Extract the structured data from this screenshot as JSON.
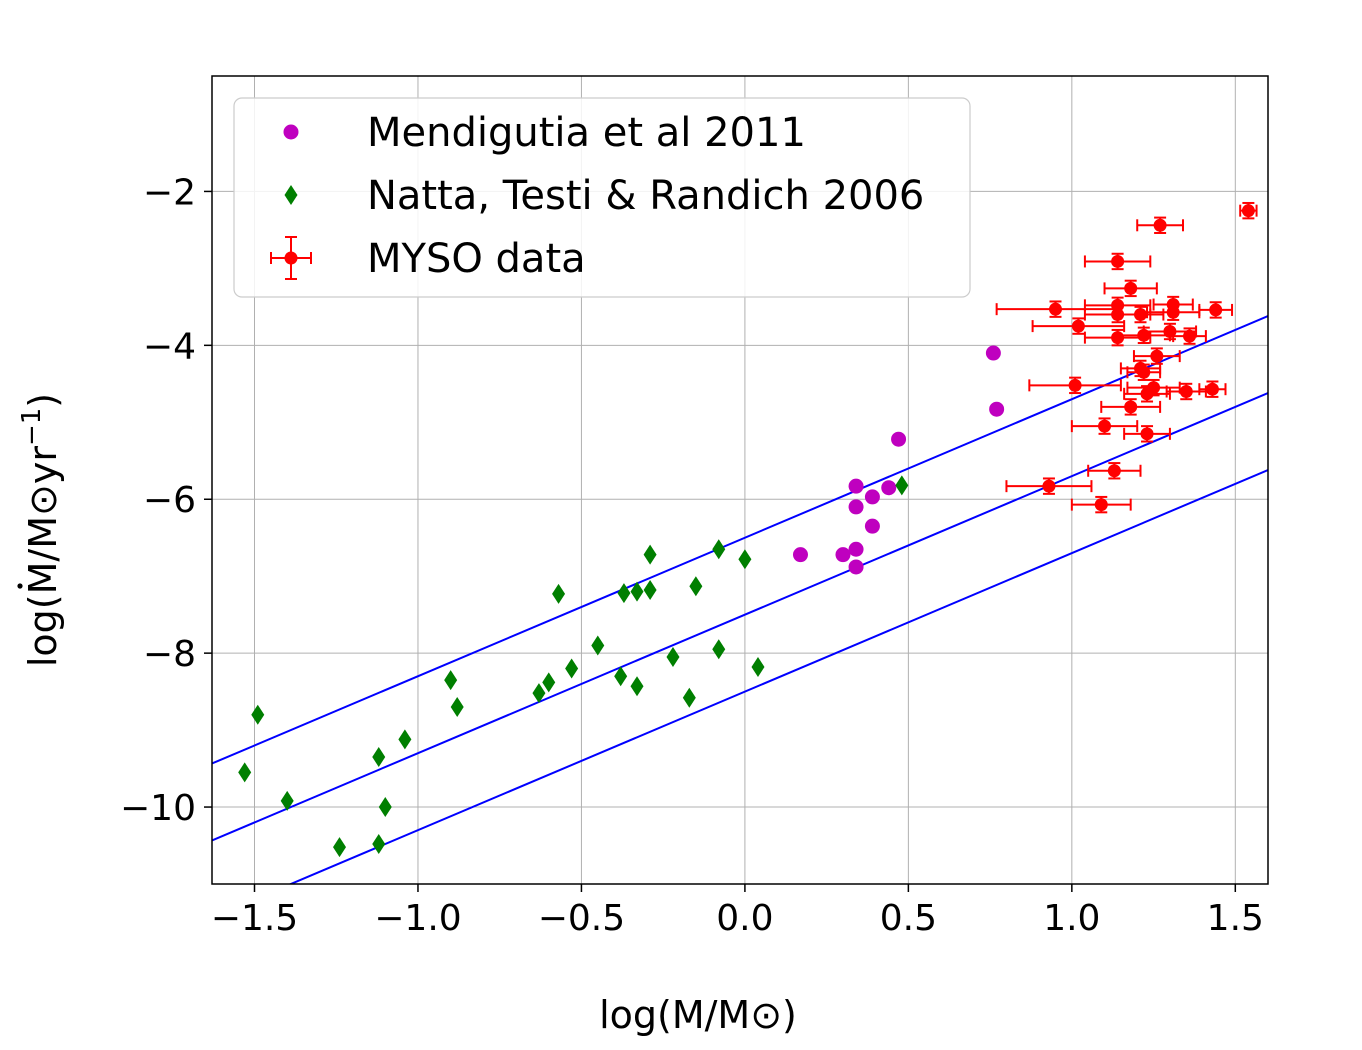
{
  "chart_data": {
    "type": "scatter",
    "title": "",
    "xlabel": "log(M/M⊙)",
    "ylabel_parts": {
      "prefix": "log(",
      "mdot": "M",
      "mid": "/M⊙yr",
      "exp": "−1",
      "suffix": ")"
    },
    "xlim": [
      -1.63,
      1.6
    ],
    "ylim": [
      -11,
      -0.5
    ],
    "x_ticks": [
      -1.5,
      -1.0,
      -0.5,
      0.0,
      0.5,
      1.0,
      1.5
    ],
    "x_tick_labels": [
      "−1.5",
      "−1.0",
      "−0.5",
      "0.0",
      "0.5",
      "1.0",
      "1.5"
    ],
    "y_ticks": [
      -10,
      -8,
      -6,
      -4,
      -2
    ],
    "y_tick_labels": [
      "−10",
      "−8",
      "−6",
      "−4",
      "−2"
    ],
    "grid": true,
    "legend_position": "upper-left",
    "lines": [
      {
        "name": "upper relation",
        "color": "#0000ff",
        "slope": 1.8,
        "intercept": -6.5
      },
      {
        "name": "middle relation",
        "color": "#0000ff",
        "slope": 1.8,
        "intercept": -7.5
      },
      {
        "name": "lower relation",
        "color": "#0000ff",
        "slope": 1.8,
        "intercept": -8.5
      }
    ],
    "series": [
      {
        "name": "Mendigutia et al 2011",
        "marker": "circle",
        "color": "#bf00bf",
        "points": [
          [
            0.17,
            -6.72
          ],
          [
            0.3,
            -6.72
          ],
          [
            0.34,
            -6.65
          ],
          [
            0.34,
            -6.88
          ],
          [
            0.34,
            -6.1
          ],
          [
            0.34,
            -5.83
          ],
          [
            0.39,
            -5.97
          ],
          [
            0.39,
            -6.35
          ],
          [
            0.44,
            -5.85
          ],
          [
            0.47,
            -5.22
          ],
          [
            0.76,
            -4.1
          ],
          [
            0.77,
            -4.83
          ]
        ]
      },
      {
        "name": "Natta, Testi & Randich 2006",
        "marker": "diamond",
        "color": "#007f00",
        "points": [
          [
            -1.53,
            -9.55
          ],
          [
            -1.49,
            -8.8
          ],
          [
            -1.4,
            -9.92
          ],
          [
            -1.24,
            -10.52
          ],
          [
            -1.12,
            -10.48
          ],
          [
            -1.12,
            -9.35
          ],
          [
            -1.1,
            -10.0
          ],
          [
            -1.04,
            -9.12
          ],
          [
            -0.9,
            -8.35
          ],
          [
            -0.88,
            -8.7
          ],
          [
            -0.63,
            -8.52
          ],
          [
            -0.6,
            -8.38
          ],
          [
            -0.57,
            -7.23
          ],
          [
            -0.53,
            -8.2
          ],
          [
            -0.45,
            -7.9
          ],
          [
            -0.38,
            -8.3
          ],
          [
            -0.37,
            -7.22
          ],
          [
            -0.33,
            -7.2
          ],
          [
            -0.33,
            -8.43
          ],
          [
            -0.29,
            -7.18
          ],
          [
            -0.29,
            -6.72
          ],
          [
            -0.22,
            -8.05
          ],
          [
            -0.17,
            -8.58
          ],
          [
            -0.15,
            -7.13
          ],
          [
            -0.08,
            -7.95
          ],
          [
            -0.08,
            -6.65
          ],
          [
            0.0,
            -6.78
          ],
          [
            0.04,
            -8.18
          ],
          [
            0.48,
            -5.82
          ]
        ]
      },
      {
        "name": "MYSO data",
        "marker": "circle-errorbar",
        "color": "#ff0000",
        "points": [
          {
            "x": 1.54,
            "y": -2.25,
            "xerr": 0.025,
            "yerr": 0.1
          },
          {
            "x": 1.27,
            "y": -2.44,
            "xerr": 0.07,
            "yerr": 0.1
          },
          {
            "x": 1.14,
            "y": -2.91,
            "xerr": 0.1,
            "yerr": 0.1
          },
          {
            "x": 1.18,
            "y": -3.26,
            "xerr": 0.08,
            "yerr": 0.1
          },
          {
            "x": 0.95,
            "y": -3.53,
            "xerr": 0.18,
            "yerr": 0.1
          },
          {
            "x": 1.14,
            "y": -3.48,
            "xerr": 0.1,
            "yerr": 0.1
          },
          {
            "x": 1.21,
            "y": -3.6,
            "xerr": 0.07,
            "yerr": 0.1
          },
          {
            "x": 1.14,
            "y": -3.6,
            "xerr": 0.1,
            "yerr": 0.1
          },
          {
            "x": 1.31,
            "y": -3.47,
            "xerr": 0.06,
            "yerr": 0.1
          },
          {
            "x": 1.31,
            "y": -3.57,
            "xerr": 0.08,
            "yerr": 0.1
          },
          {
            "x": 1.44,
            "y": -3.54,
            "xerr": 0.05,
            "yerr": 0.1
          },
          {
            "x": 1.02,
            "y": -3.75,
            "xerr": 0.14,
            "yerr": 0.1
          },
          {
            "x": 1.14,
            "y": -3.9,
            "xerr": 0.1,
            "yerr": 0.1
          },
          {
            "x": 1.22,
            "y": -3.87,
            "xerr": 0.08,
            "yerr": 0.1
          },
          {
            "x": 1.3,
            "y": -3.82,
            "xerr": 0.08,
            "yerr": 0.1
          },
          {
            "x": 1.36,
            "y": -3.88,
            "xerr": 0.05,
            "yerr": 0.1
          },
          {
            "x": 1.26,
            "y": -4.14,
            "xerr": 0.07,
            "yerr": 0.1
          },
          {
            "x": 1.21,
            "y": -4.3,
            "xerr": 0.06,
            "yerr": 0.1
          },
          {
            "x": 1.22,
            "y": -4.35,
            "xerr": 0.05,
            "yerr": 0.1
          },
          {
            "x": 1.01,
            "y": -4.52,
            "xerr": 0.14,
            "yerr": 0.1
          },
          {
            "x": 1.25,
            "y": -4.55,
            "xerr": 0.08,
            "yerr": 0.1
          },
          {
            "x": 1.23,
            "y": -4.63,
            "xerr": 0.07,
            "yerr": 0.1
          },
          {
            "x": 1.35,
            "y": -4.6,
            "xerr": 0.06,
            "yerr": 0.1
          },
          {
            "x": 1.43,
            "y": -4.57,
            "xerr": 0.04,
            "yerr": 0.1
          },
          {
            "x": 1.18,
            "y": -4.8,
            "xerr": 0.09,
            "yerr": 0.1
          },
          {
            "x": 1.1,
            "y": -5.05,
            "xerr": 0.1,
            "yerr": 0.1
          },
          {
            "x": 1.23,
            "y": -5.15,
            "xerr": 0.07,
            "yerr": 0.1
          },
          {
            "x": 1.13,
            "y": -5.63,
            "xerr": 0.08,
            "yerr": 0.1
          },
          {
            "x": 0.93,
            "y": -5.83,
            "xerr": 0.13,
            "yerr": 0.1
          },
          {
            "x": 1.09,
            "y": -6.07,
            "xerr": 0.09,
            "yerr": 0.1
          }
        ]
      }
    ]
  }
}
